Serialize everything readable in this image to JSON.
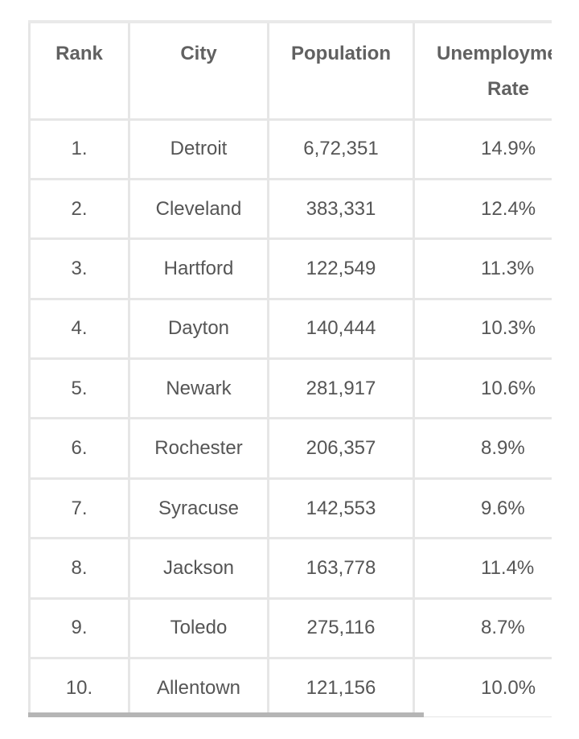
{
  "table": {
    "headers": {
      "rank": "Rank",
      "city": "City",
      "population": "Population",
      "unemployment_line1": "Unemployme",
      "unemployment_line2": "Rate"
    },
    "rows": [
      {
        "rank": "1.",
        "city": "Detroit",
        "population": "6,72,351",
        "rate": "14.9%"
      },
      {
        "rank": "2.",
        "city": "Cleveland",
        "population": "383,331",
        "rate": "12.4%"
      },
      {
        "rank": "3.",
        "city": "Hartford",
        "population": "122,549",
        "rate": "11.3%"
      },
      {
        "rank": "4.",
        "city": "Dayton",
        "population": "140,444",
        "rate": "10.3%"
      },
      {
        "rank": "5.",
        "city": "Newark",
        "population": "281,917",
        "rate": "10.6%"
      },
      {
        "rank": "6.",
        "city": "Rochester",
        "population": "206,357",
        "rate": "8.9%"
      },
      {
        "rank": "7.",
        "city": "Syracuse",
        "population": "142,553",
        "rate": "9.6%"
      },
      {
        "rank": "8.",
        "city": "Jackson",
        "population": "163,778",
        "rate": "11.4%"
      },
      {
        "rank": "9.",
        "city": "Toledo",
        "population": "275,116",
        "rate": "8.7%"
      },
      {
        "rank": "10.",
        "city": "Allentown",
        "population": "121,156",
        "rate": "10.0%"
      }
    ]
  }
}
